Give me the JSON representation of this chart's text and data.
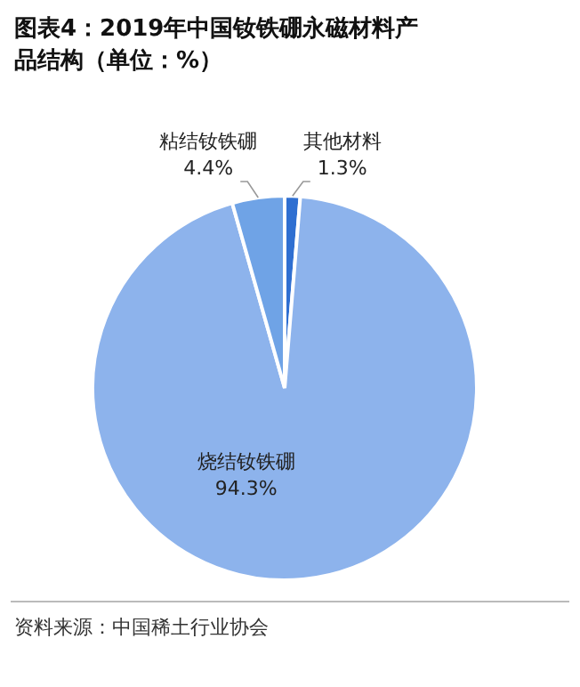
{
  "chart_data": {
    "type": "pie",
    "title": "图表4：2019年中国钕铁硼永磁材料产品结构（单位：%）",
    "categories": [
      "其他材料",
      "烧结钕铁硼",
      "粘结钕铁硼"
    ],
    "values": [
      1.3,
      94.3,
      4.4
    ],
    "colors": [
      "#2f6fd1",
      "#8db3ec",
      "#6fa3e6"
    ],
    "value_labels": [
      "1.3%",
      "94.3%",
      "4.4%"
    ],
    "annotations": [
      "资料来源：中国稀土行业协会"
    ]
  }
}
